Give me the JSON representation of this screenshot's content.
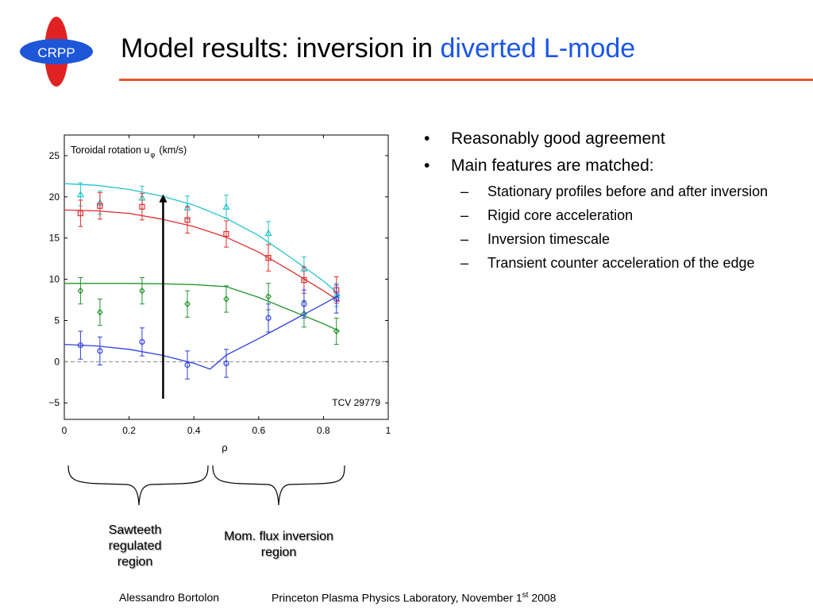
{
  "logo": {
    "text": "CRPP",
    "icon": "crpp-logo",
    "colors": {
      "oval": "#e02222",
      "ellipse": "#1e56d8",
      "text": "#ffffff"
    }
  },
  "title": {
    "part1": "Model results: inversion in ",
    "part2": "diverted L-mode",
    "accent_color": "#1a57e8",
    "rule_color": "#e8562a"
  },
  "chart_data": {
    "type": "line",
    "title": "Toroidal rotation u",
    "title_subscript": "φ",
    "title_unit": "(km/s)",
    "xlabel": "ρ",
    "ylabel": "",
    "annotation": "TCV 29779",
    "xlim": [
      0,
      1
    ],
    "ylim": [
      -7,
      27.5
    ],
    "xticks": [
      "0",
      "0.2",
      "0.4",
      "0.6",
      "0.8",
      "1"
    ],
    "yticks": [
      "−5",
      "0",
      "5",
      "10",
      "15",
      "20",
      "25"
    ],
    "xtick_values": [
      0,
      0.2,
      0.4,
      0.6,
      0.8,
      1
    ],
    "ytick_values": [
      -5,
      0,
      5,
      10,
      15,
      20,
      25
    ],
    "grid": false,
    "reference_line": {
      "y": 0,
      "style": "dashed",
      "color": "#888888"
    },
    "arrow": {
      "x": 0.305,
      "from_y": -4.5,
      "to_y": 20.2,
      "color": "#000000"
    },
    "series": [
      {
        "color": "#21c4cc",
        "marker": "triangle",
        "model": {
          "x": [
            0,
            0.1,
            0.2,
            0.3,
            0.4,
            0.5,
            0.6,
            0.7,
            0.8,
            0.85
          ],
          "y": [
            21.6,
            21.4,
            20.9,
            20.1,
            19.0,
            17.4,
            15.3,
            12.6,
            9.8,
            8.1
          ]
        },
        "points": [
          {
            "x": 0.05,
            "y": 20.3,
            "err": 1.4
          },
          {
            "x": 0.11,
            "y": 19.3,
            "err": 1.4
          },
          {
            "x": 0.24,
            "y": 19.9,
            "err": 1.4
          },
          {
            "x": 0.38,
            "y": 18.7,
            "err": 1.4
          },
          {
            "x": 0.5,
            "y": 18.8,
            "err": 1.4
          },
          {
            "x": 0.63,
            "y": 15.6,
            "err": 1.4
          },
          {
            "x": 0.74,
            "y": 11.3,
            "err": 1.4
          },
          {
            "x": 0.84,
            "y": 8.1,
            "err": 1.4
          }
        ]
      },
      {
        "color": "#e22d2d",
        "marker": "square",
        "model": {
          "x": [
            0,
            0.1,
            0.2,
            0.3,
            0.4,
            0.5,
            0.6,
            0.7,
            0.8,
            0.85
          ],
          "y": [
            18.4,
            18.3,
            18.0,
            17.3,
            16.4,
            15.1,
            13.3,
            11.0,
            8.6,
            7.3
          ]
        },
        "points": [
          {
            "x": 0.05,
            "y": 18.0,
            "err": 1.6
          },
          {
            "x": 0.11,
            "y": 18.9,
            "err": 1.6
          },
          {
            "x": 0.24,
            "y": 18.8,
            "err": 1.6
          },
          {
            "x": 0.38,
            "y": 17.2,
            "err": 1.6
          },
          {
            "x": 0.5,
            "y": 15.5,
            "err": 1.6
          },
          {
            "x": 0.63,
            "y": 12.6,
            "err": 1.6
          },
          {
            "x": 0.74,
            "y": 9.9,
            "err": 1.6
          },
          {
            "x": 0.84,
            "y": 8.7,
            "err": 1.6
          }
        ]
      },
      {
        "color": "#22942c",
        "marker": "diamond",
        "model": {
          "x": [
            0,
            0.1,
            0.2,
            0.3,
            0.4,
            0.5,
            0.6,
            0.7,
            0.8,
            0.85
          ],
          "y": [
            9.5,
            9.5,
            9.5,
            9.45,
            9.35,
            9.1,
            7.8,
            6.2,
            4.6,
            3.7
          ]
        },
        "points": [
          {
            "x": 0.05,
            "y": 8.6,
            "err": 1.6
          },
          {
            "x": 0.11,
            "y": 6.0,
            "err": 1.6
          },
          {
            "x": 0.24,
            "y": 8.6,
            "err": 1.6
          },
          {
            "x": 0.38,
            "y": 7.0,
            "err": 1.6
          },
          {
            "x": 0.5,
            "y": 7.6,
            "err": 1.6
          },
          {
            "x": 0.63,
            "y": 7.9,
            "err": 1.6
          },
          {
            "x": 0.74,
            "y": 5.8,
            "err": 1.6
          },
          {
            "x": 0.84,
            "y": 3.7,
            "err": 1.6
          }
        ]
      },
      {
        "color": "#2d3fe0",
        "marker": "circle",
        "model": {
          "x": [
            0,
            0.1,
            0.2,
            0.3,
            0.4,
            0.45,
            0.5,
            0.6,
            0.7,
            0.8,
            0.85
          ],
          "y": [
            2.1,
            1.9,
            1.5,
            0.8,
            -0.2,
            -0.9,
            0.8,
            2.8,
            4.9,
            7.0,
            8.1
          ]
        },
        "points": [
          {
            "x": 0.05,
            "y": 2.0,
            "err": 1.7
          },
          {
            "x": 0.11,
            "y": 1.3,
            "err": 1.7
          },
          {
            "x": 0.24,
            "y": 2.4,
            "err": 1.7
          },
          {
            "x": 0.38,
            "y": -0.4,
            "err": 1.7
          },
          {
            "x": 0.5,
            "y": -0.2,
            "err": 1.7
          },
          {
            "x": 0.63,
            "y": 5.3,
            "err": 1.7
          },
          {
            "x": 0.74,
            "y": 7.0,
            "err": 1.7
          },
          {
            "x": 0.84,
            "y": 7.6,
            "err": 1.7
          }
        ]
      }
    ]
  },
  "bullets": [
    {
      "text": "Reasonably good agreement",
      "level": 1,
      "marker": "•"
    },
    {
      "text": "Main features are matched:",
      "level": 1,
      "marker": "•"
    },
    {
      "text": "Stationary profiles before and after inversion",
      "level": 2,
      "marker": "–"
    },
    {
      "text": "Rigid core acceleration",
      "level": 2,
      "marker": "–"
    },
    {
      "text": "Inversion timescale",
      "level": 2,
      "marker": "–"
    },
    {
      "text": "Transient counter acceleration of the edge",
      "level": 2,
      "marker": "–"
    }
  ],
  "regions": {
    "left": {
      "line1": "Sawteeth",
      "line2": "regulated",
      "line3": "region"
    },
    "right": {
      "line1": "Mom. flux inversion",
      "line2": "region"
    }
  },
  "footer": {
    "author": "Alessandro Bortolon",
    "event": "Princeton Plasma Physics Laboratory, November 1",
    "sup": "st",
    "year": " 2008"
  }
}
